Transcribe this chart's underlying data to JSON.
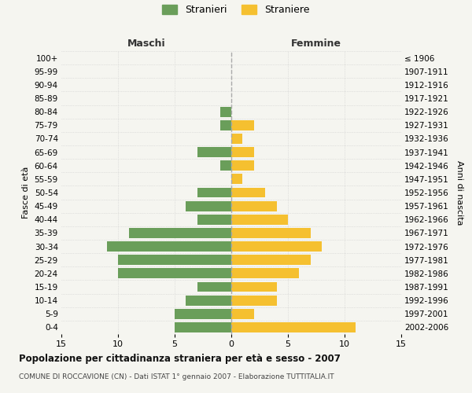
{
  "age_groups": [
    "0-4",
    "5-9",
    "10-14",
    "15-19",
    "20-24",
    "25-29",
    "30-34",
    "35-39",
    "40-44",
    "45-49",
    "50-54",
    "55-59",
    "60-64",
    "65-69",
    "70-74",
    "75-79",
    "80-84",
    "85-89",
    "90-94",
    "95-99",
    "100+"
  ],
  "birth_years": [
    "2002-2006",
    "1997-2001",
    "1992-1996",
    "1987-1991",
    "1982-1986",
    "1977-1981",
    "1972-1976",
    "1967-1971",
    "1962-1966",
    "1957-1961",
    "1952-1956",
    "1947-1951",
    "1942-1946",
    "1937-1941",
    "1932-1936",
    "1927-1931",
    "1922-1926",
    "1917-1921",
    "1912-1916",
    "1907-1911",
    "≤ 1906"
  ],
  "maschi": [
    5,
    5,
    4,
    3,
    10,
    10,
    11,
    9,
    3,
    4,
    3,
    0,
    1,
    3,
    0,
    1,
    1,
    0,
    0,
    0,
    0
  ],
  "femmine": [
    11,
    2,
    4,
    4,
    6,
    7,
    8,
    7,
    5,
    4,
    3,
    1,
    2,
    2,
    1,
    2,
    0,
    0,
    0,
    0,
    0
  ],
  "color_maschi": "#6a9e5a",
  "color_femmine": "#f5c030",
  "title": "Popolazione per cittadinanza straniera per età e sesso - 2007",
  "subtitle": "COMUNE DI ROCCAVIONE (CN) - Dati ISTAT 1° gennaio 2007 - Elaborazione TUTTITALIA.IT",
  "xlabel_left": "Maschi",
  "xlabel_right": "Femmine",
  "ylabel_left": "Fasce di età",
  "ylabel_right": "Anni di nascita",
  "legend_maschi": "Stranieri",
  "legend_femmine": "Straniere",
  "xlim": 15,
  "background_color": "#f5f5f0",
  "grid_color": "#cccccc"
}
